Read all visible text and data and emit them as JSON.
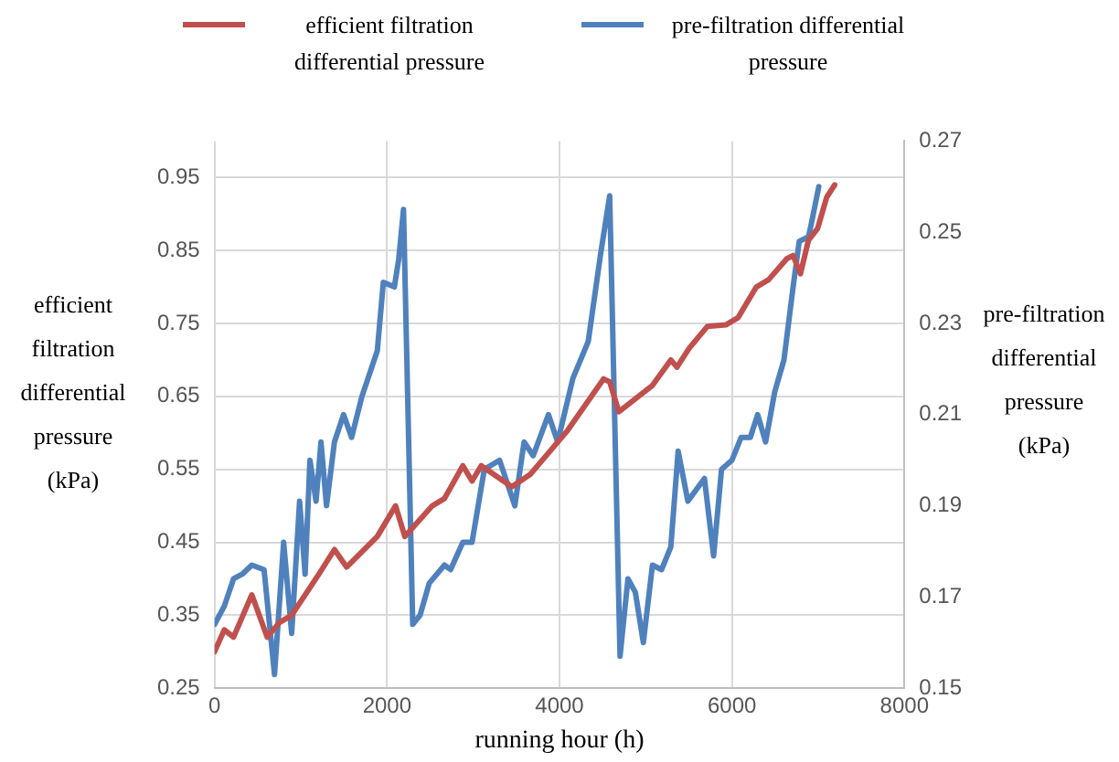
{
  "chart_data": {
    "type": "line",
    "xlabel": "running hour (h)",
    "ylabel": "efficient filtration differential pressure (kPa)",
    "y2label": "pre-filtration differential pressure (kPa)",
    "xlim": [
      0,
      8000
    ],
    "xticks": [
      0,
      2000,
      4000,
      6000,
      8000
    ],
    "ylim": [
      0.25,
      1.0
    ],
    "yticks": [
      0.25,
      0.35,
      0.45,
      0.55,
      0.65,
      0.75,
      0.85,
      0.95
    ],
    "y2lim": [
      0.15,
      0.27
    ],
    "y2ticks": [
      0.15,
      0.17,
      0.19,
      0.21,
      0.23,
      0.25,
      0.27
    ],
    "grid": true,
    "legend": "top",
    "marker": "none",
    "line_style": "solid",
    "series": [
      {
        "name": "efficient filtration differential pressure",
        "color": "#c0504d",
        "x": [
          0,
          113,
          220,
          432,
          610,
          752,
          894,
          1213,
          1390,
          1532,
          1887,
          2099,
          2206,
          2525,
          2666,
          2879,
          2986,
          3092,
          3447,
          3660,
          4085,
          4511,
          4582,
          4688,
          5078,
          5291,
          5362,
          5504,
          5716,
          5929,
          6071,
          6283,
          6425,
          6638,
          6709,
          6794,
          6887,
          6993,
          7099,
          7191
        ],
        "values": [
          0.3,
          0.33,
          0.32,
          0.378,
          0.32,
          0.34,
          0.35,
          0.407,
          0.44,
          0.416,
          0.458,
          0.5,
          0.458,
          0.5,
          0.51,
          0.555,
          0.534,
          0.555,
          0.526,
          0.543,
          0.602,
          0.674,
          0.67,
          0.629,
          0.665,
          0.7,
          0.69,
          0.716,
          0.746,
          0.748,
          0.758,
          0.8,
          0.81,
          0.839,
          0.843,
          0.818,
          0.864,
          0.88,
          0.923,
          0.94
        ]
      },
      {
        "name": "pre-filtration differential pressure",
        "color": "#4f81bd",
        "axis": "y2",
        "x": [
          0,
          113,
          220,
          320,
          432,
          574,
          695,
          801,
          894,
          986,
          1050,
          1106,
          1177,
          1234,
          1298,
          1390,
          1496,
          1589,
          1709,
          1887,
          1957,
          2085,
          2135,
          2191,
          2298,
          2383,
          2489,
          2666,
          2737,
          2879,
          2986,
          3128,
          3305,
          3482,
          3589,
          3695,
          3872,
          3979,
          4156,
          4333,
          4475,
          4582,
          4702,
          4794,
          4880,
          4972,
          5078,
          5184,
          5291,
          5376,
          5489,
          5681,
          5787,
          5879,
          6000,
          6106,
          6213,
          6298,
          6390,
          6496,
          6603,
          6709,
          6780,
          6887,
          6922,
          7007
        ],
        "values": [
          0.164,
          0.168,
          0.174,
          0.175,
          0.177,
          0.176,
          0.153,
          0.182,
          0.162,
          0.191,
          0.175,
          0.2,
          0.191,
          0.204,
          0.19,
          0.204,
          0.21,
          0.205,
          0.214,
          0.224,
          0.239,
          0.238,
          0.244,
          0.255,
          0.164,
          0.166,
          0.173,
          0.177,
          0.176,
          0.182,
          0.182,
          0.198,
          0.2,
          0.19,
          0.204,
          0.201,
          0.21,
          0.204,
          0.218,
          0.226,
          0.245,
          0.258,
          0.157,
          0.174,
          0.171,
          0.16,
          0.177,
          0.176,
          0.181,
          0.202,
          0.191,
          0.196,
          0.179,
          0.198,
          0.2,
          0.205,
          0.205,
          0.21,
          0.204,
          0.215,
          0.222,
          0.238,
          0.248,
          0.249,
          0.252,
          0.26
        ]
      }
    ]
  }
}
